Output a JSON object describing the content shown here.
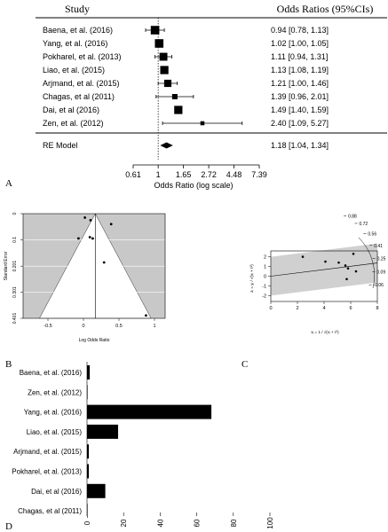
{
  "panel_labels": {
    "a": "A",
    "b": "B",
    "c": "C",
    "d": "D"
  },
  "chart_data": [
    {
      "type": "forest",
      "panel": "A",
      "header_study": "Study",
      "header_or": "Odds Ratios (95%CIs)",
      "xlabel": "Odds Ratio (log scale)",
      "xticks": [
        "0.61",
        "1",
        "1.65",
        "2.72",
        "4.48",
        "7.39"
      ],
      "xtick_values": [
        0.61,
        1,
        1.65,
        2.72,
        4.48,
        7.39
      ],
      "studies": [
        {
          "label": "Baena, et al. (2016)",
          "text": "0.94 [0.78, 1.13]",
          "or": 0.94,
          "lo": 0.78,
          "hi": 1.13,
          "weight": 1.0
        },
        {
          "label": "Yang, et al. (2016)",
          "text": "1.02 [1.00, 1.05]",
          "or": 1.02,
          "lo": 1.0,
          "hi": 1.05,
          "weight": 1.0
        },
        {
          "label": "Pokharel, et al. (2013)",
          "text": "1.11 [0.94, 1.31]",
          "or": 1.11,
          "lo": 0.94,
          "hi": 1.31,
          "weight": 0.9
        },
        {
          "label": "Liao, et al. (2015)",
          "text": "1.13 [1.08, 1.19]",
          "or": 1.13,
          "lo": 1.08,
          "hi": 1.19,
          "weight": 0.95
        },
        {
          "label": "Arjmand, et al. (2015)",
          "text": "1.21 [1.00, 1.46]",
          "or": 1.21,
          "lo": 1.0,
          "hi": 1.46,
          "weight": 0.8
        },
        {
          "label": "Chagas, et al (2011)",
          "text": "1.39 [0.96, 2.01]",
          "or": 1.39,
          "lo": 0.96,
          "hi": 2.01,
          "weight": 0.5
        },
        {
          "label": "Dai, et al (2016)",
          "text": "1.49 [1.40, 1.59]",
          "or": 1.49,
          "lo": 1.4,
          "hi": 1.59,
          "weight": 0.95
        },
        {
          "label": "Zen, et al. (2012)",
          "text": "2.40 [1.09, 5.27]",
          "or": 2.4,
          "lo": 1.09,
          "hi": 5.27,
          "weight": 0.3
        }
      ],
      "summary": {
        "label": "RE Model",
        "text": "1.18 [1.04, 1.34]",
        "or": 1.18,
        "lo": 1.04,
        "hi": 1.34
      }
    },
    {
      "type": "scatter",
      "panel": "B",
      "xlabel": "Log Odds Ratio",
      "ylabel": "Standard Error",
      "xticks": [
        "-0.5",
        "0",
        "0.5",
        "1"
      ],
      "xtick_values": [
        -0.5,
        0,
        0.5,
        1
      ],
      "yticks": [
        "0",
        "0.1",
        "0.201",
        "0.301",
        "0.401"
      ],
      "ytick_values": [
        0,
        0.1,
        0.201,
        0.301,
        0.401
      ],
      "xlim": [
        -0.85,
        1.15
      ],
      "ylim": [
        0,
        0.401
      ],
      "center": 0.166,
      "points": [
        {
          "x": 0.02,
          "y": 0.015
        },
        {
          "x": 0.1,
          "y": 0.025
        },
        {
          "x": 0.39,
          "y": 0.04
        },
        {
          "x": -0.07,
          "y": 0.095
        },
        {
          "x": 0.09,
          "y": 0.09
        },
        {
          "x": 0.13,
          "y": 0.095
        },
        {
          "x": 0.29,
          "y": 0.187
        },
        {
          "x": 0.88,
          "y": 0.39
        }
      ]
    },
    {
      "type": "scatter",
      "panel": "C",
      "xlabel": "xᵢ = 1 / √(vᵢ + τ²)",
      "ylabel": "zᵢ = yᵢ / √(vᵢ + τ²)",
      "xticks": [
        "0",
        "2",
        "4",
        "6",
        "8"
      ],
      "xtick_values": [
        0,
        2,
        4,
        6,
        8
      ],
      "yticks": [
        "-2",
        "-1",
        "0",
        "1",
        "2"
      ],
      "ytick_values": [
        -2,
        -1,
        0,
        1,
        2
      ],
      "xlim": [
        0,
        8
      ],
      "ylim": [
        -2.6,
        2.6
      ],
      "right_scale": [
        "0.88",
        "0.72",
        "0.56",
        "0.41",
        "0.25",
        "0.09",
        "-0.06"
      ],
      "points": [
        {
          "x": 2.4,
          "y": 2.0
        },
        {
          "x": 4.1,
          "y": 1.5
        },
        {
          "x": 5.1,
          "y": 1.4
        },
        {
          "x": 5.6,
          "y": 1.1
        },
        {
          "x": 5.8,
          "y": 0.8
        },
        {
          "x": 6.2,
          "y": 2.3
        },
        {
          "x": 6.4,
          "y": 0.5
        },
        {
          "x": 5.7,
          "y": -0.3
        }
      ]
    },
    {
      "type": "bar",
      "panel": "D",
      "orientation": "horizontal",
      "categories": [
        "Baena, et al. (2016)",
        "Zen, et al. (2012)",
        "Yang, et al. (2016)",
        "Liao, et al. (2015)",
        "Arjmand, et al. (2015)",
        "Pokharel, et al. (2013)",
        "Dai, et al (2016)",
        "Chagas, et al (2011)"
      ],
      "values": [
        1.5,
        0.3,
        68,
        17,
        1.0,
        1.0,
        10,
        0.3
      ],
      "xticks": [
        "0",
        "20",
        "40",
        "60",
        "80",
        "100"
      ],
      "xtick_values": [
        0,
        20,
        40,
        60,
        80,
        100
      ],
      "xlim": [
        0,
        100
      ]
    }
  ]
}
